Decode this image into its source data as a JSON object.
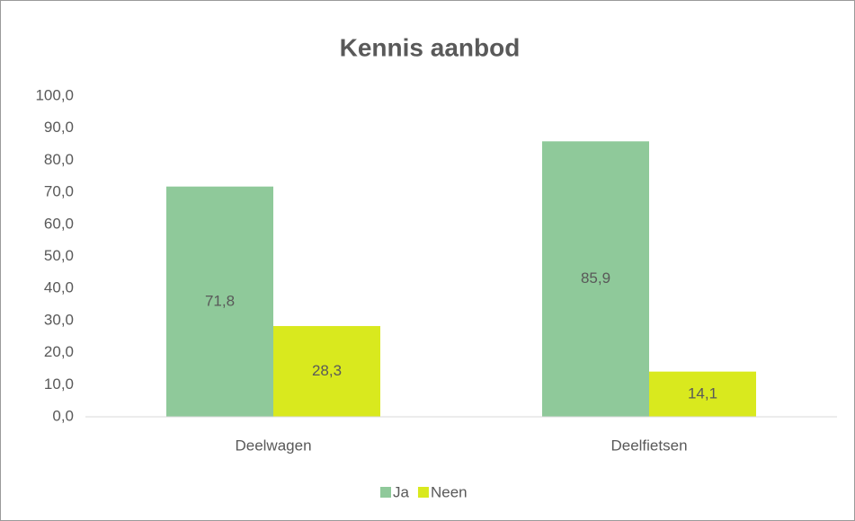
{
  "chart_data": {
    "type": "bar",
    "title": "Kennis aanbod",
    "categories": [
      "Deelwagen",
      "Deelfietsen"
    ],
    "series": [
      {
        "name": "Ja",
        "color": "#8fc99a",
        "values": [
          71.8,
          85.9
        ],
        "value_labels": [
          "71,8",
          "85,9"
        ]
      },
      {
        "name": "Neen",
        "color": "#d9e91e",
        "values": [
          28.3,
          14.1
        ],
        "value_labels": [
          "28,3",
          "14,1"
        ]
      }
    ],
    "ylim": [
      0,
      100
    ],
    "yticks": [
      {
        "value": 0,
        "label": "0,0"
      },
      {
        "value": 10,
        "label": "10,0"
      },
      {
        "value": 20,
        "label": "20,0"
      },
      {
        "value": 30,
        "label": "30,0"
      },
      {
        "value": 40,
        "label": "40,0"
      },
      {
        "value": 50,
        "label": "50,0"
      },
      {
        "value": 60,
        "label": "60,0"
      },
      {
        "value": 70,
        "label": "70,0"
      },
      {
        "value": 80,
        "label": "80,0"
      },
      {
        "value": 90,
        "label": "90,0"
      },
      {
        "value": 100,
        "label": "100,0"
      }
    ],
    "grid": false,
    "legend": "bottom"
  }
}
